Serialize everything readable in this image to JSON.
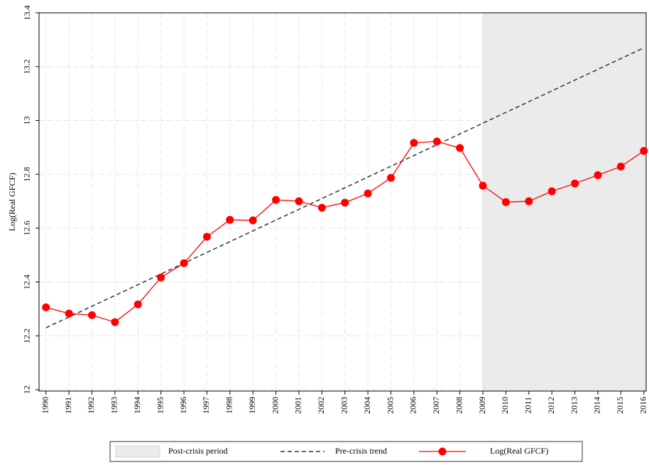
{
  "chart_data": {
    "type": "line",
    "ylabel": "Log(Real GFCF)",
    "x": [
      1990,
      1991,
      1992,
      1993,
      1994,
      1995,
      1996,
      1997,
      1998,
      1999,
      2000,
      2001,
      2002,
      2003,
      2004,
      2005,
      2006,
      2007,
      2008,
      2009,
      2010,
      2011,
      2012,
      2013,
      2014,
      2015,
      2016
    ],
    "series": [
      {
        "name": "Log(Real GFCF)",
        "color": "#ff0000",
        "values": [
          12.306,
          12.283,
          12.277,
          12.251,
          12.317,
          12.417,
          12.47,
          12.568,
          12.631,
          12.629,
          12.705,
          12.7,
          12.676,
          12.695,
          12.729,
          12.787,
          12.917,
          12.922,
          12.898,
          12.758,
          12.697,
          12.7,
          12.737,
          12.766,
          12.797,
          12.829,
          12.887
        ]
      }
    ],
    "trend": {
      "name": "Pre-crisis trend",
      "color": "#333333",
      "x": [
        1990,
        2016
      ],
      "values": [
        12.23,
        13.27
      ]
    },
    "shade": {
      "name": "Post-crisis period",
      "color": "#ebebeb",
      "start": 2009
    },
    "xlim": [
      1989.7,
      2016.1
    ],
    "ylim": [
      11.995,
      13.4
    ],
    "xticks": [
      1990,
      1991,
      1992,
      1993,
      1994,
      1995,
      1996,
      1997,
      1998,
      1999,
      2000,
      2001,
      2002,
      2003,
      2004,
      2005,
      2006,
      2007,
      2008,
      2009,
      2010,
      2011,
      2012,
      2013,
      2014,
      2015,
      2016
    ],
    "yticks": [
      12,
      12.2,
      12.4,
      12.6,
      12.8,
      13,
      13.2,
      13.4
    ],
    "grid": true
  }
}
